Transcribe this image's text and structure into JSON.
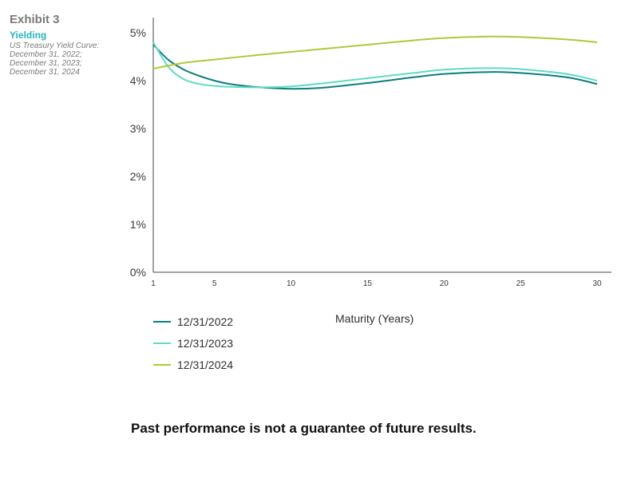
{
  "exhibit_label": "Exhibit 3",
  "subtitle": "Yielding",
  "description_lines": [
    "US Treasury Yield Curve:",
    "December 31, 2022;",
    "December 31, 2023;",
    "December 31, 2024"
  ],
  "disclaimer": "Past performance is not a guarantee of future results.",
  "chart_data": {
    "type": "line",
    "title": "",
    "xlabel": "Maturity (Years)",
    "ylabel": "",
    "xlim": [
      1,
      31
    ],
    "ylim": [
      0,
      5.3
    ],
    "grid": false,
    "legend_position": "bottom-left",
    "x_ticks": [
      1,
      5,
      10,
      15,
      20,
      25,
      30
    ],
    "x_tick_labels": [
      "1",
      "5",
      "10",
      "15",
      "20",
      "25",
      "30"
    ],
    "y_ticks": [
      0,
      1,
      2,
      3,
      4,
      5
    ],
    "y_tick_labels": [
      "0%",
      "1%",
      "2%",
      "3%",
      "4%",
      "5%"
    ],
    "series": [
      {
        "name": "12/31/2022",
        "color": "#0d7d80",
        "x": [
          1,
          2,
          3,
          4,
          5,
          6,
          8,
          10,
          12,
          15,
          18,
          20,
          23,
          25,
          28,
          30
        ],
        "y": [
          4.75,
          4.43,
          4.23,
          4.1,
          4.0,
          3.93,
          3.86,
          3.83,
          3.85,
          3.95,
          4.07,
          4.14,
          4.18,
          4.16,
          4.07,
          3.93
        ]
      },
      {
        "name": "12/31/2023",
        "color": "#5fdcc2",
        "x": [
          1,
          2,
          3,
          4,
          5,
          6,
          8,
          10,
          12,
          15,
          18,
          20,
          23,
          25,
          28,
          30
        ],
        "y": [
          4.8,
          4.28,
          4.03,
          3.93,
          3.89,
          3.87,
          3.86,
          3.88,
          3.94,
          4.05,
          4.16,
          4.23,
          4.26,
          4.24,
          4.14,
          4.0
        ]
      },
      {
        "name": "12/31/2024",
        "color": "#afc93b",
        "x": [
          1,
          3,
          5,
          8,
          10,
          13,
          15,
          18,
          20,
          23,
          25,
          28,
          30
        ],
        "y": [
          4.25,
          4.37,
          4.44,
          4.54,
          4.6,
          4.69,
          4.75,
          4.84,
          4.89,
          4.92,
          4.91,
          4.86,
          4.8
        ]
      }
    ]
  }
}
